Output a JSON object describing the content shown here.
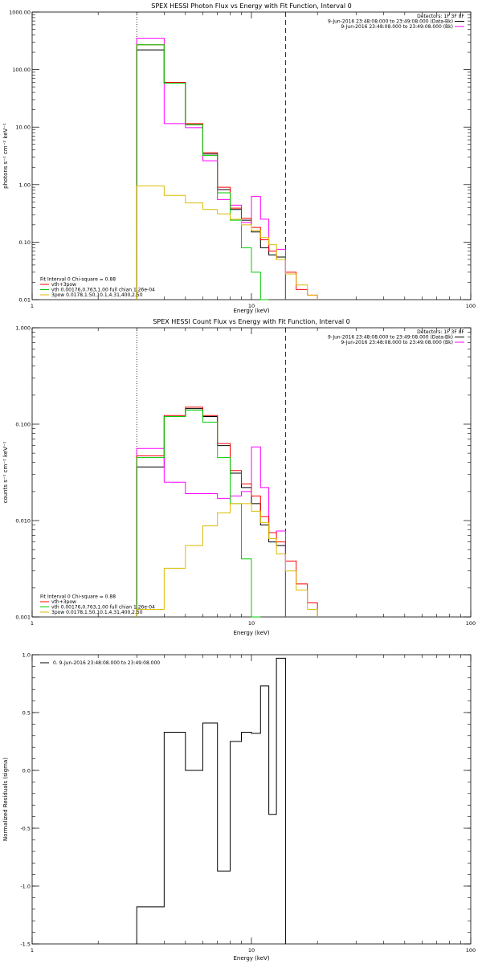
{
  "chart_data": [
    {
      "type": "line",
      "title": "SPEX HESSI Photon Flux vs Energy with Fit Function, Interval 0",
      "xlabel": "Energy (keV)",
      "ylabel": "photons s⁻¹ cm⁻² keV⁻¹",
      "xlim": [
        1,
        100
      ],
      "ylim": [
        0.01,
        1000
      ],
      "xscale": "log",
      "yscale": "log",
      "x_ticks": [
        "1",
        "10",
        "100"
      ],
      "y_ticks": [
        "0.01",
        "0.10",
        "1.00",
        "10.00",
        "100.00",
        "1000.00"
      ],
      "y_tick_values": [
        0.01,
        0.1,
        1,
        10,
        100,
        1000
      ],
      "header": [
        "Detectors: 1F 3F 8F",
        "9-Jun-2016 23:48:08.000 to 23:49:08.000 (Data-Bk)",
        "9-Jun-2016 23:48:08.000 to 23:49:08.000 (Bk)"
      ],
      "header_colors": [
        "",
        "#000000",
        "#ff00ff"
      ],
      "legend_title": "Fit Interval 0   Chi-square = 0.88",
      "legend_position": "bottom-left",
      "vlines": [
        {
          "x": 3.0,
          "style": "dotted"
        },
        {
          "x": 14.3,
          "style": "dashed"
        }
      ],
      "bin_edges": [
        3.0,
        4.0,
        5.0,
        6.0,
        7.0,
        8.0,
        9.0,
        10.0,
        11.0,
        12.0,
        13.0,
        14.3,
        16.0,
        18.0,
        20.0
      ],
      "series": [
        {
          "name": "",
          "color": "#000000",
          "values": [
            220,
            58,
            11,
            3.4,
            0.82,
            0.37,
            0.24,
            0.15,
            0.08,
            0.06,
            0.055,
            null,
            null,
            null
          ]
        },
        {
          "name": "",
          "color": "#ff00ff",
          "values": [
            350,
            11.5,
            9.8,
            2.6,
            0.55,
            0.44,
            0.22,
            0.62,
            0.25,
            0.07,
            0.075,
            null,
            null,
            null
          ]
        },
        {
          "name": "vth+3pow",
          "color": "#ff0000",
          "values": [
            270,
            60,
            11.5,
            3.6,
            0.9,
            0.39,
            0.26,
            0.18,
            0.11,
            0.07,
            0.05,
            0.03,
            0.015,
            0.012
          ]
        },
        {
          "name": "vth 0.00176,0.763,1.00  full chian 1.26e-04",
          "color": "#00cc00",
          "values": [
            270,
            58,
            11,
            3.2,
            0.72,
            0.24,
            0.08,
            0.03,
            0.01,
            null,
            null,
            null,
            null,
            null
          ]
        },
        {
          "name": "3pow 0.0178,1.50,10.1,4.31,400,2.50",
          "color": "#ddbb00",
          "values": [
            0.95,
            0.65,
            0.48,
            0.37,
            0.31,
            0.25,
            0.2,
            0.16,
            0.12,
            0.09,
            0.05,
            0.028,
            0.018,
            0.012
          ]
        }
      ]
    },
    {
      "type": "line",
      "title": "SPEX HESSI Count Flux vs Energy with Fit Function, Interval 0",
      "xlabel": "Energy (keV)",
      "ylabel": "counts s⁻¹ cm⁻² keV⁻¹",
      "xlim": [
        1,
        100
      ],
      "ylim": [
        0.001,
        1
      ],
      "xscale": "log",
      "yscale": "log",
      "x_ticks": [
        "1",
        "10",
        "100"
      ],
      "y_ticks": [
        "0.001",
        "0.010",
        "0.100",
        "1.000"
      ],
      "y_tick_values": [
        0.001,
        0.01,
        0.1,
        1
      ],
      "header": [
        "Detectors: 1F 3F 8F",
        "9-Jun-2016 23:48:08.000 to 23:49:08.000 (Data-Bk)",
        "9-Jun-2016 23:48:08.000 to 23:49:08.000 (Bk)"
      ],
      "header_colors": [
        "",
        "#000000",
        "#ff00ff"
      ],
      "legend_title": "Fit Interval 0   Chi-square = 0.88",
      "legend_position": "bottom-left",
      "vlines": [
        {
          "x": 3.0,
          "style": "dotted"
        },
        {
          "x": 14.3,
          "style": "dashed"
        }
      ],
      "bin_edges": [
        3.0,
        4.0,
        5.0,
        6.0,
        7.0,
        8.0,
        9.0,
        10.0,
        11.0,
        12.0,
        13.0,
        14.3,
        16.0,
        18.0,
        20.0
      ],
      "series": [
        {
          "name": "",
          "color": "#000000",
          "values": [
            0.036,
            0.12,
            0.145,
            0.12,
            0.06,
            0.031,
            0.022,
            0.015,
            0.009,
            0.006,
            0.0055,
            null,
            null,
            null
          ]
        },
        {
          "name": "",
          "color": "#ff00ff",
          "values": [
            0.056,
            0.025,
            0.019,
            0.019,
            0.017,
            0.018,
            0.02,
            0.058,
            0.022,
            0.0075,
            0.0078,
            null,
            null,
            null
          ]
        },
        {
          "name": "vth+3pow",
          "color": "#ff0000",
          "values": [
            0.047,
            0.123,
            0.15,
            0.123,
            0.063,
            0.033,
            0.024,
            0.018,
            0.011,
            0.0075,
            0.006,
            0.0038,
            0.0022,
            0.0014
          ]
        },
        {
          "name": "vth 0.00176,0.763,1.00  full chian 1.26e-04",
          "color": "#00cc00",
          "values": [
            0.045,
            0.12,
            0.14,
            0.105,
            0.045,
            0.015,
            0.004,
            0.001,
            null,
            null,
            null,
            null,
            null,
            null
          ]
        },
        {
          "name": "3pow 0.0178,1.50,10.1,4.31,400,2.50",
          "color": "#ddbb00",
          "values": [
            0.0012,
            0.0032,
            0.0055,
            0.0088,
            0.012,
            0.015,
            0.015,
            0.0125,
            0.0095,
            0.0065,
            0.0045,
            0.003,
            0.0019,
            0.0012
          ]
        }
      ]
    },
    {
      "type": "line",
      "title": "",
      "xlabel": "Energy (keV)",
      "ylabel": "Normalized Residuals (sigma)",
      "xlim": [
        1,
        100
      ],
      "ylim": [
        -1.5,
        1.0
      ],
      "xscale": "log",
      "yscale": "linear",
      "x_ticks": [
        "1",
        "10",
        "100"
      ],
      "y_ticks": [
        "-1.5",
        "-1.0",
        "-0.5",
        "0.0",
        "0.5",
        "1.0"
      ],
      "y_tick_values": [
        -1.5,
        -1.0,
        -0.5,
        0.0,
        0.5,
        1.0
      ],
      "header": [],
      "header_colors": [],
      "legend_title": "",
      "legend_position": "top-left",
      "vlines": [],
      "bin_edges": [
        3.0,
        4.0,
        5.0,
        6.0,
        7.0,
        8.0,
        9.0,
        10.0,
        11.0,
        12.0,
        13.0,
        14.3
      ],
      "series": [
        {
          "name": "0.  9-Jun-2016 23:48:08.000 to 23:49:08.000",
          "color": "#000000",
          "values": [
            -1.18,
            0.33,
            0.0,
            0.41,
            -0.87,
            0.25,
            0.33,
            0.32,
            0.73,
            -0.38,
            0.97
          ]
        }
      ]
    }
  ]
}
